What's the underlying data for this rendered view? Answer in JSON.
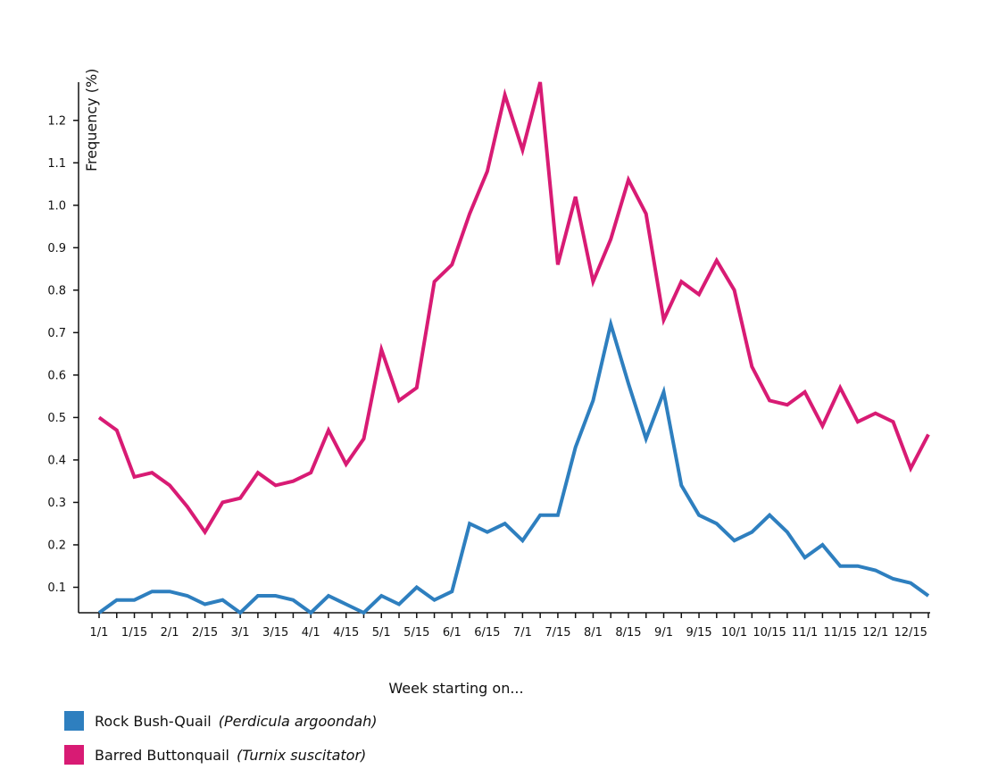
{
  "chart_data": {
    "type": "line",
    "ylabel": "Frequency (%)",
    "xlabel": "Week starting on...",
    "ylim": [
      0.04,
      1.29
    ],
    "yticks": [
      0.1,
      0.2,
      0.3,
      0.4,
      0.5,
      0.6,
      0.7,
      0.8,
      0.9,
      1.0,
      1.1,
      1.2
    ],
    "ytick_labels": [
      "0.1",
      "0.2",
      "0.3",
      "0.4",
      "0.5",
      "0.6",
      "0.7",
      "0.8",
      "0.9",
      "1.0",
      "1.1",
      "1.2"
    ],
    "x_labels": [
      "1/1",
      "1/15",
      "2/1",
      "2/15",
      "3/1",
      "3/15",
      "4/1",
      "4/15",
      "5/1",
      "5/15",
      "6/1",
      "6/15",
      "7/1",
      "7/15",
      "8/1",
      "8/15",
      "9/1",
      "9/15",
      "10/1",
      "10/15",
      "11/1",
      "11/15",
      "12/1",
      "12/15"
    ],
    "legend_position": "bottom-left",
    "series": [
      {
        "name": "Rock Bush-Quail",
        "scientific": "(Perdicula argoondah)",
        "color": "#2e7fbf",
        "values": [
          0.04,
          0.07,
          0.07,
          0.09,
          0.09,
          0.08,
          0.06,
          0.07,
          0.04,
          0.08,
          0.08,
          0.07,
          0.04,
          0.08,
          0.06,
          0.04,
          0.08,
          0.06,
          0.1,
          0.07,
          0.09,
          0.25,
          0.23,
          0.25,
          0.21,
          0.27,
          0.27,
          0.43,
          0.54,
          0.72,
          0.58,
          0.45,
          0.56,
          0.34,
          0.27,
          0.25,
          0.21,
          0.23,
          0.27,
          0.23,
          0.17,
          0.2,
          0.15,
          0.15,
          0.14,
          0.12,
          0.11,
          0.08
        ]
      },
      {
        "name": "Barred Buttonquail",
        "scientific": "(Turnix suscitator)",
        "color": "#d81b74",
        "values": [
          0.5,
          0.47,
          0.36,
          0.37,
          0.34,
          0.29,
          0.23,
          0.3,
          0.31,
          0.37,
          0.34,
          0.35,
          0.37,
          0.47,
          0.39,
          0.45,
          0.66,
          0.54,
          0.57,
          0.82,
          0.86,
          0.98,
          1.08,
          1.26,
          1.13,
          1.29,
          0.86,
          1.02,
          0.82,
          0.92,
          1.06,
          0.98,
          0.73,
          0.82,
          0.79,
          0.87,
          0.8,
          0.62,
          0.54,
          0.53,
          0.56,
          0.48,
          0.57,
          0.49,
          0.51,
          0.49,
          0.38,
          0.46
        ]
      }
    ]
  }
}
